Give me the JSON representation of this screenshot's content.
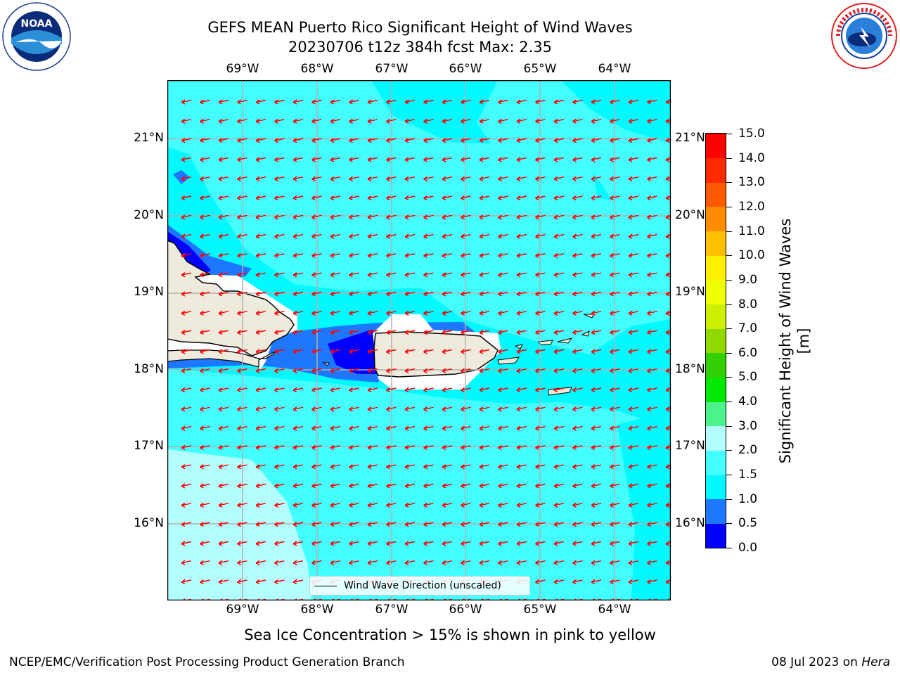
{
  "title_line1": "GEFS MEAN Puerto Rico Significant Height of Wind Waves",
  "title_line2": "20230706 t12z 384h fcst   Max: 2.35",
  "lon_labels": [
    "69°W",
    "68°W",
    "67°W",
    "66°W",
    "65°W",
    "64°W"
  ],
  "lat_labels": [
    "21°N",
    "20°N",
    "19°N",
    "18°N",
    "17°N",
    "16°N"
  ],
  "legend_text": "Wind Wave Direction (unscaled)",
  "colorbar": {
    "label": "Significant Height of Wind Waves [m]",
    "ticks": [
      "0.0",
      "0.5",
      "1.0",
      "1.5",
      "2.0",
      "3.0",
      "4.0",
      "5.0",
      "6.0",
      "7.0",
      "8.0",
      "9.0",
      "10.0",
      "11.0",
      "12.0",
      "13.0",
      "14.0",
      "15.0"
    ],
    "colors": [
      "#0000ff",
      "#1e78ff",
      "#00faff",
      "#44ffff",
      "#b3ffff",
      "#4cf28a",
      "#00e800",
      "#32d000",
      "#90d800",
      "#cdf000",
      "#f0ff00",
      "#fff000",
      "#ffbe00",
      "#ff8c00",
      "#ff5a00",
      "#ff2a00",
      "#ff0000"
    ]
  },
  "subtitle": "Sea Ice Concentration > 15% is shown in pink to yellow",
  "footer_left": "NCEP/EMC/Verification Post Processing Product Generation Branch",
  "footer_right_date": "08 Jul 2023 on ",
  "footer_right_machine": "Hera",
  "logo_left": "NOAA",
  "logo_right": "NATIONAL WEATHER SERVICE",
  "map_colors": {
    "sea": "#44ffff",
    "light": "#b3ffff",
    "mid": "#00faff",
    "blue": "#1e78ff",
    "deep": "#0000ff",
    "land": "#efebdc",
    "arrow": "#ff0000",
    "grid": "#b0b0b0"
  }
}
